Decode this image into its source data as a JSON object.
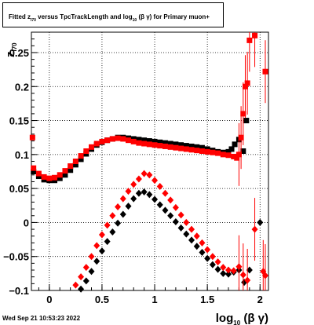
{
  "title": {
    "prefix": "Fitted  z",
    "z_sub": "I70",
    "middle": "  versus TpcTrackLength and log",
    "log_sub": "10",
    "suffix": " (β  γ) for Primary muon+"
  },
  "timestamp": "Wed Sep 21 10:53:23 2022",
  "chart_data": {
    "type": "scatter",
    "title": "Fitted zI70 versus TpcTrackLength and log10(β γ) for Primary muon+",
    "xlabel": "log10(β γ)",
    "ylabel": "zI70",
    "xlim": [
      -0.17,
      2.08
    ],
    "ylim": [
      -0.1,
      0.28
    ],
    "xticks": [
      0,
      0.5,
      1,
      1.5,
      2
    ],
    "xtick_labels": [
      "0",
      "0.5",
      "1",
      "1.5",
      "2"
    ],
    "yticks": [
      -0.1,
      -0.05,
      0,
      0.05,
      0.1,
      0.15,
      0.2,
      0.25
    ],
    "ytick_labels": [
      "−0.1",
      "−0.05",
      "0",
      "0.05",
      "0.1",
      "0.15",
      "0.2",
      "0.25"
    ],
    "grid": true,
    "series": [
      {
        "color": "#000000",
        "marker": "square",
        "points": [
          [
            -0.15,
            0.075
          ],
          [
            -0.1,
            0.068
          ],
          [
            -0.05,
            0.063
          ],
          [
            0,
            0.062
          ],
          [
            0.05,
            0.062
          ],
          [
            0.1,
            0.065
          ],
          [
            0.15,
            0.07
          ],
          [
            0.2,
            0.077
          ],
          [
            0.25,
            0.085
          ],
          [
            0.3,
            0.093
          ],
          [
            0.35,
            0.101
          ],
          [
            0.4,
            0.108
          ],
          [
            0.45,
            0.114
          ],
          [
            0.5,
            0.118
          ],
          [
            0.55,
            0.121
          ],
          [
            0.6,
            0.123
          ],
          [
            0.65,
            0.125
          ],
          [
            0.7,
            0.125
          ],
          [
            0.75,
            0.124
          ],
          [
            0.8,
            0.123
          ],
          [
            0.85,
            0.122
          ],
          [
            0.9,
            0.121
          ],
          [
            0.95,
            0.12
          ],
          [
            1,
            0.119
          ],
          [
            1.05,
            0.118
          ],
          [
            1.1,
            0.117
          ],
          [
            1.15,
            0.116
          ],
          [
            1.2,
            0.115
          ],
          [
            1.25,
            0.114
          ],
          [
            1.3,
            0.113
          ],
          [
            1.35,
            0.112
          ],
          [
            1.4,
            0.111
          ],
          [
            1.45,
            0.11
          ],
          [
            1.5,
            0.108
          ],
          [
            1.55,
            0.106
          ],
          [
            1.6,
            0.104
          ],
          [
            1.65,
            0.103
          ],
          [
            1.7,
            0.104
          ],
          [
            1.73,
            0.108
          ],
          [
            1.76,
            0.115
          ],
          [
            1.8,
            0.122
          ],
          [
            1.84,
            0.105
          ],
          [
            1.87,
            0.15
          ]
        ]
      },
      {
        "color": "#ff0000",
        "marker": "square",
        "points": [
          [
            -0.16,
            0.125
          ],
          [
            -0.15,
            0.08
          ],
          [
            -0.1,
            0.072
          ],
          [
            -0.05,
            0.067
          ],
          [
            0,
            0.065
          ],
          [
            0.05,
            0.066
          ],
          [
            0.1,
            0.07
          ],
          [
            0.15,
            0.076
          ],
          [
            0.2,
            0.083
          ],
          [
            0.25,
            0.09
          ],
          [
            0.3,
            0.098
          ],
          [
            0.35,
            0.105
          ],
          [
            0.4,
            0.111
          ],
          [
            0.45,
            0.116
          ],
          [
            0.5,
            0.119
          ],
          [
            0.55,
            0.121
          ],
          [
            0.6,
            0.123
          ],
          [
            0.65,
            0.124
          ],
          [
            0.7,
            0.123
          ],
          [
            0.75,
            0.121
          ],
          [
            0.8,
            0.119
          ],
          [
            0.85,
            0.117
          ],
          [
            0.9,
            0.116
          ],
          [
            0.95,
            0.115
          ],
          [
            1,
            0.114
          ],
          [
            1.05,
            0.113
          ],
          [
            1.1,
            0.112
          ],
          [
            1.15,
            0.111
          ],
          [
            1.2,
            0.11
          ],
          [
            1.25,
            0.109
          ],
          [
            1.3,
            0.108
          ],
          [
            1.35,
            0.107
          ],
          [
            1.4,
            0.106
          ],
          [
            1.45,
            0.105
          ],
          [
            1.5,
            0.104
          ],
          [
            1.55,
            0.103
          ],
          [
            1.6,
            0.102
          ],
          [
            1.65,
            0.1
          ],
          [
            1.7,
            0.099
          ],
          [
            1.75,
            0.097
          ],
          [
            1.78,
            0.095
          ],
          [
            1.8,
            0.1
          ],
          [
            1.82,
            0.125
          ],
          [
            1.84,
            0.16
          ],
          [
            1.86,
            0.2
          ],
          [
            1.88,
            0.205
          ],
          [
            1.9,
            0.268
          ],
          [
            1.95,
            0.275
          ],
          [
            2.05,
            0.222
          ]
        ]
      },
      {
        "color": "#000000",
        "marker": "diamond",
        "points": [
          [
            0.25,
            -0.108
          ],
          [
            0.3,
            -0.098
          ],
          [
            0.35,
            -0.086
          ],
          [
            0.4,
            -0.072
          ],
          [
            0.45,
            -0.057
          ],
          [
            0.5,
            -0.042
          ],
          [
            0.55,
            -0.028
          ],
          [
            0.6,
            -0.014
          ],
          [
            0.65,
            -0.001
          ],
          [
            0.7,
            0.012
          ],
          [
            0.75,
            0.024
          ],
          [
            0.8,
            0.035
          ],
          [
            0.85,
            0.043
          ],
          [
            0.9,
            0.045
          ],
          [
            0.95,
            0.041
          ],
          [
            1,
            0.034
          ],
          [
            1.05,
            0.026
          ],
          [
            1.1,
            0.018
          ],
          [
            1.15,
            0.01
          ],
          [
            1.2,
            0.001
          ],
          [
            1.25,
            -0.008
          ],
          [
            1.3,
            -0.017
          ],
          [
            1.35,
            -0.026
          ],
          [
            1.4,
            -0.035
          ],
          [
            1.45,
            -0.044
          ],
          [
            1.5,
            -0.053
          ],
          [
            1.55,
            -0.062
          ],
          [
            1.6,
            -0.069
          ],
          [
            1.65,
            -0.075
          ],
          [
            1.7,
            -0.076
          ],
          [
            1.75,
            -0.073
          ],
          [
            1.8,
            -0.07
          ],
          [
            1.85,
            -0.088
          ],
          [
            1.9,
            -0.07
          ],
          [
            2,
            0
          ]
        ]
      },
      {
        "color": "#ff0000",
        "marker": "diamond",
        "points": [
          [
            0.25,
            -0.092
          ],
          [
            0.3,
            -0.08
          ],
          [
            0.35,
            -0.066
          ],
          [
            0.4,
            -0.05
          ],
          [
            0.45,
            -0.034
          ],
          [
            0.5,
            -0.018
          ],
          [
            0.55,
            -0.004
          ],
          [
            0.6,
            0.01
          ],
          [
            0.65,
            0.023
          ],
          [
            0.7,
            0.035
          ],
          [
            0.75,
            0.046
          ],
          [
            0.8,
            0.056
          ],
          [
            0.85,
            0.064
          ],
          [
            0.9,
            0.072
          ],
          [
            0.95,
            0.07
          ],
          [
            1,
            0.062
          ],
          [
            1.05,
            0.053
          ],
          [
            1.1,
            0.043
          ],
          [
            1.15,
            0.033
          ],
          [
            1.2,
            0.022
          ],
          [
            1.25,
            0.011
          ],
          [
            1.3,
            0
          ],
          [
            1.35,
            -0.01
          ],
          [
            1.4,
            -0.02
          ],
          [
            1.45,
            -0.03
          ],
          [
            1.5,
            -0.04
          ],
          [
            1.55,
            -0.05
          ],
          [
            1.6,
            -0.058
          ],
          [
            1.65,
            -0.066
          ],
          [
            1.7,
            -0.07
          ],
          [
            1.75,
            -0.071
          ],
          [
            1.8,
            -0.065
          ],
          [
            1.84,
            -0.077
          ],
          [
            1.88,
            -0.085
          ],
          [
            1.95,
            -0.01
          ],
          [
            2.03,
            -0.072
          ],
          [
            2.05,
            -0.078
          ]
        ]
      }
    ]
  }
}
